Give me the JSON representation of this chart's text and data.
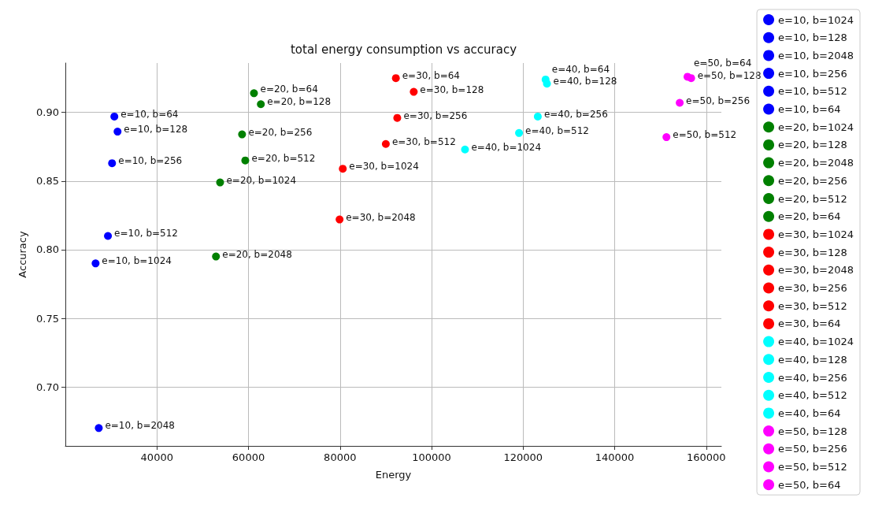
{
  "chart_data": {
    "type": "scatter",
    "title": "total energy consumption vs accuracy",
    "xlabel": "Energy",
    "ylabel": "Accuracy",
    "xlim": [
      20000,
      163300
    ],
    "xticks": [
      40000,
      60000,
      80000,
      100000,
      120000,
      140000,
      160000
    ],
    "ylim": [
      0.657,
      0.936
    ],
    "yticks": [
      {
        "value": 0.7,
        "label": "0.70"
      },
      0.75,
      {
        "value": 0.8,
        "label": "0.80"
      },
      0.85,
      {
        "value": 0.9,
        "label": "0.90"
      }
    ],
    "grid": true,
    "legend": "right",
    "marker": "circle",
    "series": [
      {
        "name": "e=10, b=1024",
        "color": "#0000ff",
        "x": [
          26600
        ],
        "values": [
          0.79
        ]
      },
      {
        "name": "e=10, b=128",
        "color": "#0000ff",
        "x": [
          31400
        ],
        "values": [
          0.886
        ]
      },
      {
        "name": "e=10, b=2048",
        "color": "#0000ff",
        "x": [
          27300
        ],
        "values": [
          0.67
        ]
      },
      {
        "name": "e=10, b=256",
        "color": "#0000ff",
        "x": [
          30200
        ],
        "values": [
          0.863
        ]
      },
      {
        "name": "e=10, b=512",
        "color": "#0000ff",
        "x": [
          29300
        ],
        "values": [
          0.81
        ]
      },
      {
        "name": "e=10, b=64",
        "color": "#0000ff",
        "x": [
          30700
        ],
        "values": [
          0.897
        ]
      },
      {
        "name": "e=20, b=1024",
        "color": "#008000",
        "x": [
          53800
        ],
        "values": [
          0.849
        ]
      },
      {
        "name": "e=20, b=128",
        "color": "#008000",
        "x": [
          62700
        ],
        "values": [
          0.906
        ]
      },
      {
        "name": "e=20, b=2048",
        "color": "#008000",
        "x": [
          52900
        ],
        "values": [
          0.795
        ]
      },
      {
        "name": "e=20, b=256",
        "color": "#008000",
        "x": [
          58600
        ],
        "values": [
          0.884
        ]
      },
      {
        "name": "e=20, b=512",
        "color": "#008000",
        "x": [
          59300
        ],
        "values": [
          0.865
        ]
      },
      {
        "name": "e=20, b=64",
        "color": "#008000",
        "x": [
          61200
        ],
        "values": [
          0.914
        ]
      },
      {
        "name": "e=30, b=1024",
        "color": "#ff0000",
        "x": [
          80600
        ],
        "values": [
          0.859
        ]
      },
      {
        "name": "e=30, b=128",
        "color": "#ff0000",
        "x": [
          96100
        ],
        "values": [
          0.915
        ]
      },
      {
        "name": "e=30, b=2048",
        "color": "#ff0000",
        "x": [
          79900
        ],
        "values": [
          0.822
        ]
      },
      {
        "name": "e=30, b=256",
        "color": "#ff0000",
        "x": [
          92500
        ],
        "values": [
          0.896
        ]
      },
      {
        "name": "e=30, b=512",
        "color": "#ff0000",
        "x": [
          90000
        ],
        "values": [
          0.877
        ]
      },
      {
        "name": "e=30, b=64",
        "color": "#ff0000",
        "x": [
          92200
        ],
        "values": [
          0.925
        ]
      },
      {
        "name": "e=40, b=1024",
        "color": "#00ffff",
        "x": [
          107300
        ],
        "values": [
          0.873
        ]
      },
      {
        "name": "e=40, b=128",
        "color": "#00ffff",
        "x": [
          125200
        ],
        "values": [
          0.921
        ]
      },
      {
        "name": "e=40, b=256",
        "color": "#00ffff",
        "x": [
          123200
        ],
        "values": [
          0.897
        ]
      },
      {
        "name": "e=40, b=512",
        "color": "#00ffff",
        "x": [
          119100
        ],
        "values": [
          0.885
        ]
      },
      {
        "name": "e=40, b=64",
        "color": "#00ffff",
        "x": [
          124900
        ],
        "values": [
          0.924
        ]
      },
      {
        "name": "e=50, b=128",
        "color": "#ff00ff",
        "x": [
          156700
        ],
        "values": [
          0.925
        ]
      },
      {
        "name": "e=50, b=256",
        "color": "#ff00ff",
        "x": [
          154200
        ],
        "values": [
          0.907
        ]
      },
      {
        "name": "e=50, b=512",
        "color": "#ff00ff",
        "x": [
          151300
        ],
        "values": [
          0.882
        ]
      },
      {
        "name": "e=50, b=64",
        "color": "#ff00ff",
        "x": [
          155900
        ],
        "values": [
          0.926
        ]
      }
    ]
  }
}
